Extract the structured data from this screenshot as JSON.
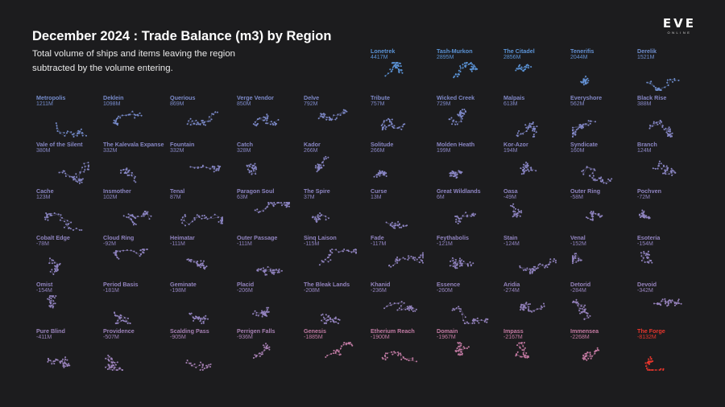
{
  "header": {
    "title": "December 2024 : Trade Balance (m3) by Region",
    "subtitle": "Total volume of ships and items leaving the region subtracted by the volume entering."
  },
  "logo": {
    "main": "EVE",
    "sub": "ONLINE"
  },
  "colors": {
    "background": "#1c1c1e",
    "positive": "#5b93d6",
    "neutral": "#8e85c2",
    "negative": "#c47aa2",
    "extreme_negative": "#e8362d"
  },
  "chart_data": {
    "type": "small-multiples",
    "title": "December 2024 : Trade Balance (m3) by Region",
    "unit": "m3",
    "regions": [
      {
        "name": "Lonetrek",
        "label": "4417M",
        "value": 4417
      },
      {
        "name": "Tash-Murkon",
        "label": "2895M",
        "value": 2895
      },
      {
        "name": "The Citadel",
        "label": "2856M",
        "value": 2856
      },
      {
        "name": "Tenerifis",
        "label": "2044M",
        "value": 2044
      },
      {
        "name": "Derelik",
        "label": "1521M",
        "value": 1521
      },
      {
        "name": "Metropolis",
        "label": "1211M",
        "value": 1211
      },
      {
        "name": "Deklein",
        "label": "1098M",
        "value": 1098
      },
      {
        "name": "Querious",
        "label": "869M",
        "value": 869
      },
      {
        "name": "Verge Vendor",
        "label": "850M",
        "value": 850
      },
      {
        "name": "Delve",
        "label": "792M",
        "value": 792
      },
      {
        "name": "Tribute",
        "label": "757M",
        "value": 757
      },
      {
        "name": "Wicked Creek",
        "label": "729M",
        "value": 729
      },
      {
        "name": "Malpais",
        "label": "613M",
        "value": 613
      },
      {
        "name": "Everyshore",
        "label": "562M",
        "value": 562
      },
      {
        "name": "Black Rise",
        "label": "388M",
        "value": 388
      },
      {
        "name": "Vale of the Silent",
        "label": "380M",
        "value": 380
      },
      {
        "name": "The Kalevala Expanse",
        "label": "332M",
        "value": 332
      },
      {
        "name": "Fountain",
        "label": "332M",
        "value": 332
      },
      {
        "name": "Catch",
        "label": "328M",
        "value": 328
      },
      {
        "name": "Kador",
        "label": "266M",
        "value": 266
      },
      {
        "name": "Solitude",
        "label": "266M",
        "value": 266
      },
      {
        "name": "Molden Heath",
        "label": "199M",
        "value": 199
      },
      {
        "name": "Kor-Azor",
        "label": "194M",
        "value": 194
      },
      {
        "name": "Syndicate",
        "label": "160M",
        "value": 160
      },
      {
        "name": "Branch",
        "label": "124M",
        "value": 124
      },
      {
        "name": "Cache",
        "label": "123M",
        "value": 123
      },
      {
        "name": "Insmother",
        "label": "102M",
        "value": 102
      },
      {
        "name": "Tenal",
        "label": "87M",
        "value": 87
      },
      {
        "name": "Paragon Soul",
        "label": "63M",
        "value": 63
      },
      {
        "name": "The Spire",
        "label": "37M",
        "value": 37
      },
      {
        "name": "Curse",
        "label": "13M",
        "value": 13
      },
      {
        "name": "Great Wildlands",
        "label": "6M",
        "value": 6
      },
      {
        "name": "Oasa",
        "label": "-49M",
        "value": -49
      },
      {
        "name": "Outer Ring",
        "label": "-58M",
        "value": -58
      },
      {
        "name": "Pochven",
        "label": "-72M",
        "value": -72
      },
      {
        "name": "Cobalt Edge",
        "label": "-78M",
        "value": -78
      },
      {
        "name": "Cloud Ring",
        "label": "-92M",
        "value": -92
      },
      {
        "name": "Heimatar",
        "label": "-111M",
        "value": -111
      },
      {
        "name": "Outer Passage",
        "label": "-111M",
        "value": -111
      },
      {
        "name": "Sinq Laison",
        "label": "-115M",
        "value": -115
      },
      {
        "name": "Fade",
        "label": "-117M",
        "value": -117
      },
      {
        "name": "Feythabolis",
        "label": "-121M",
        "value": -121
      },
      {
        "name": "Stain",
        "label": "-124M",
        "value": -124
      },
      {
        "name": "Venal",
        "label": "-152M",
        "value": -152
      },
      {
        "name": "Esoteria",
        "label": "-154M",
        "value": -154
      },
      {
        "name": "Omist",
        "label": "-154M",
        "value": -154
      },
      {
        "name": "Period Basis",
        "label": "-181M",
        "value": -181
      },
      {
        "name": "Geminate",
        "label": "-198M",
        "value": -198
      },
      {
        "name": "Placid",
        "label": "-206M",
        "value": -206
      },
      {
        "name": "The Bleak Lands",
        "label": "-208M",
        "value": -208
      },
      {
        "name": "Khanid",
        "label": "-236M",
        "value": -236
      },
      {
        "name": "Essence",
        "label": "-260M",
        "value": -260
      },
      {
        "name": "Aridia",
        "label": "-274M",
        "value": -274
      },
      {
        "name": "Detorid",
        "label": "-284M",
        "value": -284
      },
      {
        "name": "Devoid",
        "label": "-342M",
        "value": -342
      },
      {
        "name": "Pure Blind",
        "label": "-411M",
        "value": -411
      },
      {
        "name": "Providence",
        "label": "-507M",
        "value": -507
      },
      {
        "name": "Scalding Pass",
        "label": "-905M",
        "value": -905
      },
      {
        "name": "Perrigen Falls",
        "label": "-936M",
        "value": -936
      },
      {
        "name": "Genesis",
        "label": "-1885M",
        "value": -1885
      },
      {
        "name": "Etherium Reach",
        "label": "-1900M",
        "value": -1900
      },
      {
        "name": "Domain",
        "label": "-1967M",
        "value": -1967
      },
      {
        "name": "Impass",
        "label": "-2167M",
        "value": -2167
      },
      {
        "name": "Immensea",
        "label": "-2268M",
        "value": -2268
      },
      {
        "name": "The Forge",
        "label": "-8132M",
        "value": -8132
      }
    ]
  }
}
